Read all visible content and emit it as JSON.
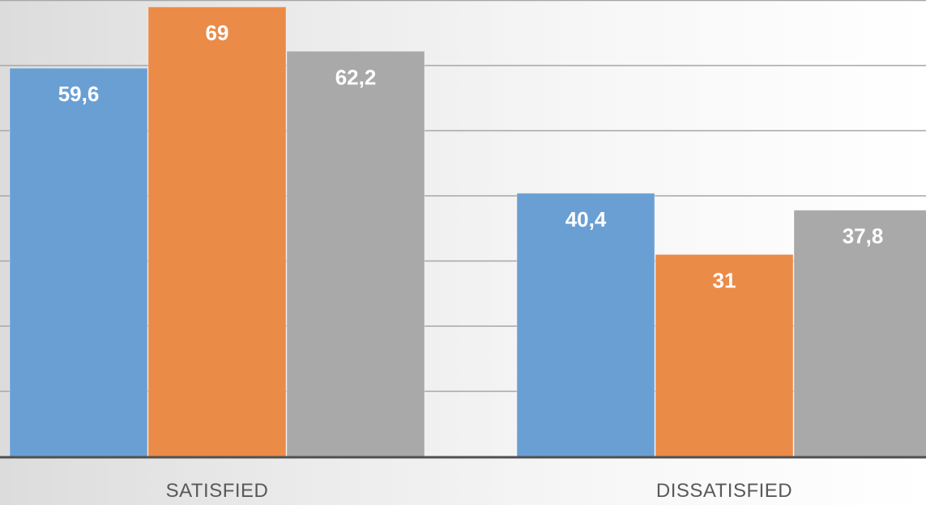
{
  "chart_data": {
    "type": "bar",
    "categories": [
      "SATISFIED",
      "DISSATISFIED"
    ],
    "series": [
      {
        "values": [
          59.6,
          40.4
        ],
        "labels": [
          "59,6",
          "40,4"
        ],
        "color": "#6a9fd4"
      },
      {
        "values": [
          69,
          31
        ],
        "labels": [
          "69",
          "31"
        ],
        "color": "#eb8b48"
      },
      {
        "values": [
          62.2,
          37.8
        ],
        "labels": [
          "62,2",
          "37,8"
        ],
        "color": "#a9a9a9"
      }
    ],
    "grid": true,
    "legend": "none",
    "colors": {
      "gridline": "#a6a6a6",
      "axis": "#505050",
      "label": "#ffffff",
      "category_text": "#595959"
    }
  }
}
